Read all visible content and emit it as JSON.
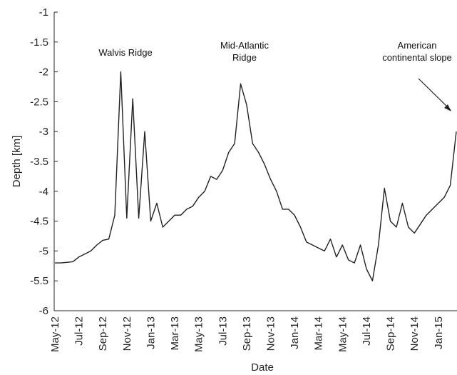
{
  "chart_data": {
    "type": "line",
    "x_label": "Date",
    "y_label": "Depth [km]",
    "color": "#222222",
    "categories": [
      "May-12",
      null,
      null,
      null,
      "Jul-12",
      null,
      null,
      null,
      "Sep-12",
      null,
      null,
      null,
      "Nov-12",
      null,
      null,
      null,
      "Jan-13",
      null,
      null,
      null,
      "Mar-13",
      null,
      null,
      null,
      "May-13",
      null,
      null,
      null,
      "Jul-13",
      null,
      null,
      null,
      "Sep-13",
      null,
      null,
      null,
      "Nov-13",
      null,
      null,
      null,
      "Jan-14",
      null,
      null,
      null,
      "Mar-14",
      null,
      null,
      null,
      "May-14",
      null,
      null,
      null,
      "Jul-14",
      null,
      null,
      null,
      "Sep-14",
      null,
      null,
      null,
      "Nov-14",
      null,
      null,
      null,
      "Jan-15",
      null,
      null,
      null
    ],
    "values": [
      -5.2,
      -5.2,
      -5.19,
      -5.18,
      -5.1,
      -5.05,
      -5.0,
      -4.9,
      -4.82,
      -4.8,
      -4.4,
      -2.0,
      -4.45,
      -2.45,
      -4.45,
      -3.0,
      -4.5,
      -4.2,
      -4.6,
      -4.5,
      -4.4,
      -4.4,
      -4.3,
      -4.25,
      -4.1,
      -4.0,
      -3.75,
      -3.8,
      -3.65,
      -3.35,
      -3.2,
      -2.2,
      -2.55,
      -3.2,
      -3.35,
      -3.55,
      -3.8,
      -4.0,
      -4.3,
      -4.3,
      -4.4,
      -4.6,
      -4.85,
      -4.9,
      -4.95,
      -5.0,
      -4.8,
      -5.1,
      -4.9,
      -5.15,
      -5.2,
      -4.9,
      -5.3,
      -5.5,
      -4.9,
      -3.95,
      -4.5,
      -4.6,
      -4.2,
      -4.6,
      -4.7,
      -4.55,
      -4.4,
      -4.3,
      -4.2,
      -4.1,
      -3.9,
      -3.0
    ],
    "ylim": [
      -6,
      -1
    ],
    "yticks": [
      -6,
      -5.5,
      -5,
      -4.5,
      -4,
      -3.5,
      -3,
      -2.5,
      -2,
      -1.5,
      -1
    ],
    "annotations": [
      {
        "lines": [
          "Walvis Ridge"
        ]
      },
      {
        "lines": [
          "Mid-Atlantic",
          "Ridge"
        ]
      },
      {
        "lines": [
          "American",
          "continental slope"
        ]
      }
    ]
  }
}
